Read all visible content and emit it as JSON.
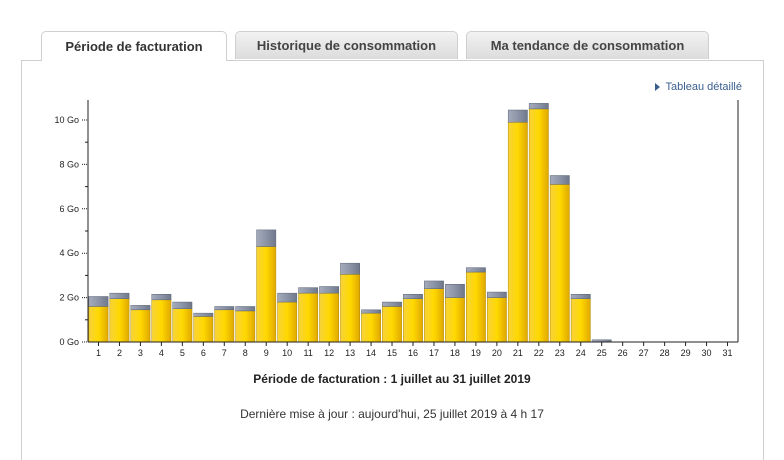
{
  "tabs": [
    {
      "label": "Période de facturation",
      "active": true
    },
    {
      "label": "Historique de consommation",
      "active": false
    },
    {
      "label": "Ma tendance de consommation",
      "active": false
    }
  ],
  "detail_link": {
    "label": "Tableau détaillé",
    "icon": "triangle-right-icon"
  },
  "caption": "Période de facturation : 1 juillet au 31 juillet 2019",
  "last_update": "Dernière mise à jour : aujourd'hui, 25 juillet 2019 à 4 h 17",
  "colors": {
    "bar_main": "#f5c400",
    "bar_top": "#8d95a8",
    "link": "#3a5f8f"
  },
  "chart_data": {
    "type": "bar",
    "stacked": true,
    "categories": [
      "1",
      "2",
      "3",
      "4",
      "5",
      "6",
      "7",
      "8",
      "9",
      "10",
      "11",
      "12",
      "13",
      "14",
      "15",
      "16",
      "17",
      "18",
      "19",
      "20",
      "21",
      "22",
      "23",
      "24",
      "25",
      "26",
      "27",
      "28",
      "29",
      "30",
      "31"
    ],
    "series": [
      {
        "values": [
          1.6,
          1.95,
          1.45,
          1.9,
          1.5,
          1.15,
          1.45,
          1.4,
          4.3,
          1.8,
          2.2,
          2.2,
          3.05,
          1.3,
          1.6,
          1.95,
          2.4,
          2.0,
          3.15,
          2.0,
          9.9,
          10.5,
          7.1,
          1.95,
          0,
          0,
          0,
          0,
          0,
          0,
          0
        ]
      },
      {
        "values": [
          0.45,
          0.25,
          0.2,
          0.25,
          0.3,
          0.15,
          0.15,
          0.2,
          0.75,
          0.4,
          0.25,
          0.3,
          0.5,
          0.15,
          0.2,
          0.2,
          0.35,
          0.6,
          0.2,
          0.25,
          0.55,
          0.25,
          0.4,
          0.2,
          0.1,
          0,
          0,
          0,
          0,
          0,
          0
        ]
      }
    ],
    "y_tick_labels": [
      "0 Go",
      "2 Go",
      "4 Go",
      "6 Go",
      "8 Go",
      "10 Go"
    ],
    "y_ticks": [
      0,
      2,
      4,
      6,
      8,
      10
    ],
    "ylim": [
      0,
      11.1
    ],
    "grid": false
  }
}
